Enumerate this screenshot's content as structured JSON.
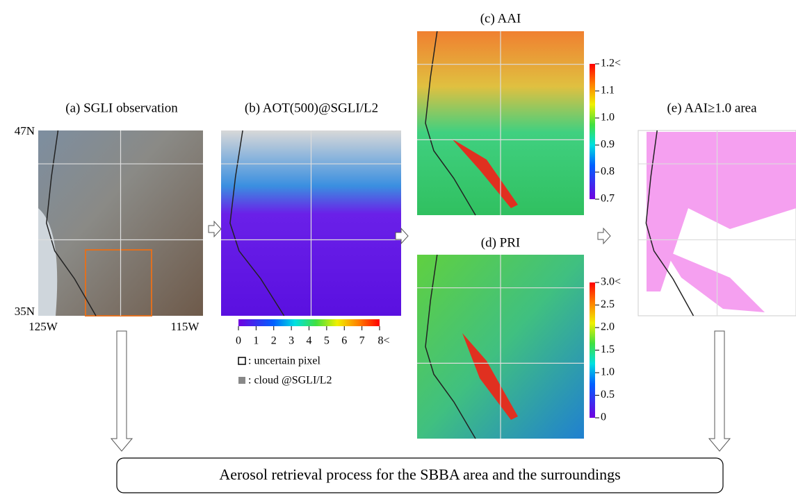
{
  "panels": [
    {
      "title": "(a) SGLI observation",
      "lat_labels": [
        "47N",
        "35N"
      ],
      "lon_labels": [
        "125W",
        "115W"
      ]
    },
    {
      "title": "(b) AOT(500)@SGLI/L2",
      "colorbar_ticks": [
        "0",
        "1",
        "2",
        "3",
        "4",
        "5",
        "6",
        "7",
        "8<"
      ],
      "legend": [
        ": uncertain pixel",
        ": cloud @SGLI/L2"
      ]
    },
    {
      "title": "(c) AAI",
      "colorbar_ticks": [
        "1.2<",
        "1.1",
        "1.0",
        "0.9",
        "0.8",
        "0.7"
      ]
    },
    {
      "title": "(d) PRI",
      "colorbar_ticks": [
        "3.0<",
        "2.5",
        "2.0",
        "1.5",
        "1.0",
        "0.5",
        "0"
      ]
    },
    {
      "title": "(e) AAI≥1.0 area"
    }
  ],
  "process": "Aerosol retrieval process for the SBBA area and the surroundings"
}
